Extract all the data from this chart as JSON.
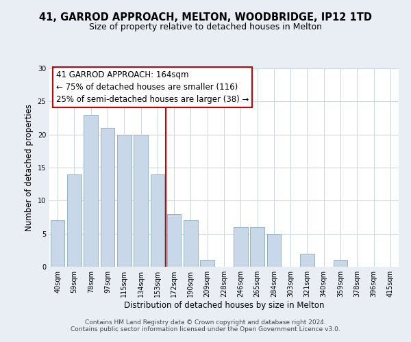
{
  "title": "41, GARROD APPROACH, MELTON, WOODBRIDGE, IP12 1TD",
  "subtitle": "Size of property relative to detached houses in Melton",
  "xlabel": "Distribution of detached houses by size in Melton",
  "ylabel": "Number of detached properties",
  "bin_labels": [
    "40sqm",
    "59sqm",
    "78sqm",
    "97sqm",
    "115sqm",
    "134sqm",
    "153sqm",
    "172sqm",
    "190sqm",
    "209sqm",
    "228sqm",
    "246sqm",
    "265sqm",
    "284sqm",
    "303sqm",
    "321sqm",
    "340sqm",
    "359sqm",
    "378sqm",
    "396sqm",
    "415sqm"
  ],
  "bar_values": [
    7,
    14,
    23,
    21,
    20,
    20,
    14,
    8,
    7,
    1,
    0,
    6,
    6,
    5,
    0,
    2,
    0,
    1,
    0,
    0,
    0
  ],
  "bar_color": "#c8d8e8",
  "bar_edge_color": "#8aaabb",
  "annotation_title": "41 GARROD APPROACH: 164sqm",
  "annotation_line1": "← 75% of detached houses are smaller (116)",
  "annotation_line2": "25% of semi-detached houses are larger (38) →",
  "annotation_box_color": "#ffffff",
  "annotation_box_edge_color": "#cc0000",
  "vline_color": "#cc0000",
  "ylim": [
    0,
    30
  ],
  "yticks": [
    0,
    5,
    10,
    15,
    20,
    25,
    30
  ],
  "footer1": "Contains HM Land Registry data © Crown copyright and database right 2024.",
  "footer2": "Contains public sector information licensed under the Open Government Licence v3.0.",
  "background_color": "#e8eef4",
  "plot_background_color": "#ffffff",
  "grid_color": "#c8d4e0",
  "title_fontsize": 10.5,
  "subtitle_fontsize": 9,
  "annotation_fontsize": 8.5,
  "tick_fontsize": 7,
  "axis_label_fontsize": 8.5,
  "footer_fontsize": 6.5
}
